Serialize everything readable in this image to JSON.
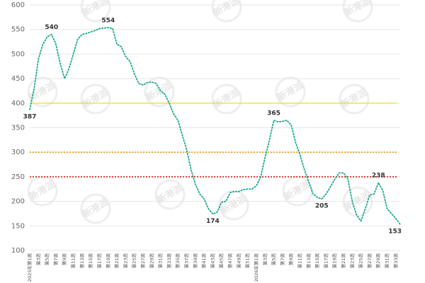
{
  "chart_data": {
    "type": "line",
    "watermark": "新港派",
    "categories": [
      "2025年第1周",
      null,
      "第3周",
      null,
      "第5周",
      null,
      "第7周",
      null,
      "第9周",
      null,
      "第11周",
      null,
      "第13周",
      null,
      "第15周",
      null,
      "第17周",
      null,
      "第19周",
      null,
      "第21周",
      null,
      "第23周",
      null,
      "第25周",
      null,
      "第27周",
      null,
      "第29周",
      null,
      "第31周",
      null,
      "第33周",
      null,
      "第35周",
      null,
      "第37周",
      null,
      "第39周",
      null,
      "第41周",
      null,
      "第43周",
      null,
      "第45周",
      null,
      "第47周",
      null,
      "第49周",
      null,
      "第51周",
      null,
      "2026年第1周",
      null,
      "第3周",
      null,
      "第5周",
      null,
      "第7周",
      null,
      "第9周",
      null,
      "第11周",
      null,
      "第13周",
      null,
      "第15周",
      null,
      "第17周",
      null,
      "第19周",
      null,
      "第21周",
      null,
      "第23周",
      null,
      "第25周",
      null,
      "第27周",
      null,
      "第29周",
      null,
      "第31周",
      null,
      "第33周",
      null
    ],
    "series": [
      {
        "name": null,
        "color": "#1aaa8c",
        "values": [
          387,
          430,
          490,
          520,
          535,
          540,
          520,
          480,
          450,
          470,
          500,
          530,
          540,
          542,
          545,
          548,
          552,
          553,
          554,
          552,
          520,
          515,
          495,
          485,
          460,
          440,
          437,
          442,
          443,
          440,
          425,
          418,
          400,
          378,
          365,
          335,
          305,
          265,
          235,
          215,
          205,
          185,
          174,
          178,
          198,
          200,
          218,
          220,
          220,
          224,
          225,
          225,
          232,
          250,
          290,
          325,
          365,
          362,
          363,
          365,
          355,
          320,
          295,
          265,
          240,
          215,
          208,
          205,
          215,
          230,
          245,
          258,
          258,
          245,
          200,
          172,
          160,
          185,
          213,
          215,
          238,
          222,
          185,
          175,
          165,
          153
        ],
        "value_labels": [
          387,
          null,
          null,
          null,
          null,
          540,
          null,
          null,
          null,
          null,
          null,
          null,
          null,
          null,
          null,
          null,
          null,
          null,
          554,
          null,
          null,
          null,
          null,
          null,
          null,
          null,
          null,
          null,
          null,
          null,
          null,
          null,
          null,
          null,
          null,
          null,
          null,
          null,
          null,
          null,
          null,
          null,
          174,
          null,
          null,
          null,
          null,
          null,
          null,
          null,
          null,
          null,
          null,
          null,
          null,
          null,
          365,
          null,
          null,
          null,
          null,
          null,
          null,
          null,
          null,
          null,
          null,
          205,
          null,
          null,
          null,
          null,
          null,
          null,
          null,
          null,
          null,
          null,
          null,
          null,
          238,
          null,
          null,
          null,
          null,
          153
        ]
      }
    ],
    "reference_lines": [
      {
        "value": 400,
        "color": "#f5d90a",
        "style": "solid"
      },
      {
        "value": 300,
        "color": "#f0a030",
        "style": "dotted"
      },
      {
        "value": 250,
        "color": "#d9302c",
        "style": "dotted"
      }
    ],
    "ylim": [
      100,
      600
    ],
    "yticks": [
      100,
      150,
      200,
      250,
      300,
      350,
      400,
      450,
      500,
      550,
      600
    ],
    "grid": true
  }
}
